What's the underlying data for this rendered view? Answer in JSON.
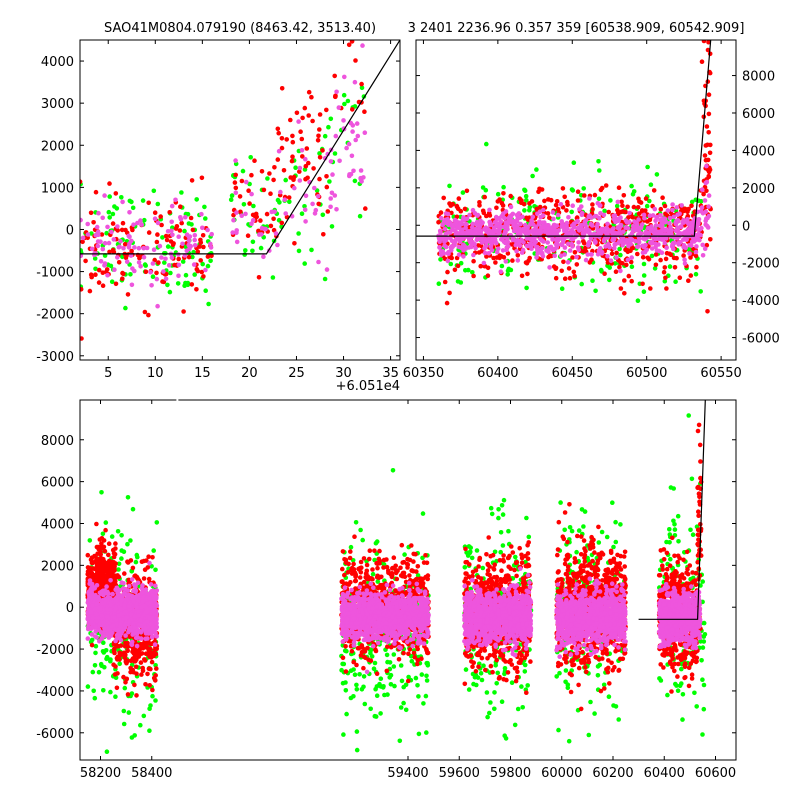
{
  "titles": {
    "left": "SAO41M0804.079190 (8463.42, 3513.40)",
    "right": "3 2401 2236.96 0.357 359 [60538.909, 60542.909]"
  },
  "colors": {
    "green": "#00ff00",
    "red": "#ff0000",
    "pink": "#ee55dd",
    "model": "#000000"
  },
  "chart_data": [
    {
      "panel": "top-left",
      "type": "scatter",
      "offset_label": "+6.051e4",
      "xlim": [
        2,
        36
      ],
      "ylim": [
        -3100,
        4500
      ],
      "xticks": [
        5,
        10,
        15,
        20,
        25,
        30,
        35
      ],
      "yticks": [
        -3000,
        -2000,
        -1000,
        0,
        1000,
        2000,
        3000,
        4000
      ],
      "series": [
        {
          "color": "green",
          "clusters": [
            {
              "xr": [
                2,
                16
              ],
              "cy": -300,
              "sy": 650,
              "n": 110
            },
            {
              "xr": [
                18,
                23
              ],
              "cy": 300,
              "sy": 650,
              "n": 30
            },
            {
              "xr": [
                23,
                29
              ],
              "cy": 900,
              "sy": 900,
              "n": 30
            },
            {
              "xr": [
                29,
                32.5
              ],
              "cy": 2500,
              "sy": 1200,
              "n": 15
            }
          ]
        },
        {
          "color": "red",
          "clusters": [
            {
              "xr": [
                2,
                16
              ],
              "cy": -500,
              "sy": 600,
              "n": 130
            },
            {
              "xr": [
                18,
                23
              ],
              "cy": 600,
              "sy": 600,
              "n": 35
            },
            {
              "xr": [
                23,
                28.5
              ],
              "cy": 1600,
              "sy": 800,
              "n": 55
            },
            {
              "xr": [
                29,
                32.5
              ],
              "cy": 2800,
              "sy": 900,
              "n": 15
            }
          ]
        },
        {
          "color": "pink",
          "clusters": [
            {
              "xr": [
                2,
                16
              ],
              "cy": -400,
              "sy": 500,
              "n": 110
            },
            {
              "xr": [
                18,
                23
              ],
              "cy": 100,
              "sy": 500,
              "n": 25
            },
            {
              "xr": [
                23,
                29
              ],
              "cy": 900,
              "sy": 700,
              "n": 30
            },
            {
              "xr": [
                29,
                32.5
              ],
              "cy": 2200,
              "sy": 900,
              "n": 30
            }
          ]
        }
      ],
      "model": {
        "x": [
          2,
          21.8,
          36
        ],
        "y": [
          -580,
          -580,
          4500
        ]
      }
    },
    {
      "panel": "top-right",
      "type": "scatter",
      "xlim": [
        60345,
        60560
      ],
      "ylim": [
        -7200,
        9900
      ],
      "xticks": [
        60350,
        60400,
        60450,
        60500,
        60550
      ],
      "yticks": [
        -6000,
        -4000,
        -2000,
        0,
        2000,
        4000,
        6000,
        8000
      ],
      "series": [
        {
          "color": "green",
          "clusters": [
            {
              "xr": [
                60360,
                60537
              ],
              "cy": -400,
              "sy": 1500,
              "n": 260
            }
          ]
        },
        {
          "color": "red",
          "clusters": [
            {
              "xr": [
                60360,
                60537
              ],
              "cy": -500,
              "sy": 1100,
              "n": 620
            },
            {
              "xr": [
                60537,
                60543
              ],
              "cy": 4200,
              "sy": 3000,
              "n": 50
            }
          ]
        },
        {
          "color": "pink",
          "clusters": [
            {
              "xr": [
                60360,
                60537
              ],
              "cy": -450,
              "sy": 600,
              "n": 900
            },
            {
              "xr": [
                60537,
                60543
              ],
              "cy": 1200,
              "sy": 1500,
              "n": 20
            }
          ]
        }
      ],
      "model": {
        "x": [
          60345,
          60532,
          60543
        ],
        "y": [
          -580,
          -580,
          9900
        ]
      }
    },
    {
      "panel": "bottom",
      "type": "scatter",
      "xlim": [
        58120,
        60680
      ],
      "ylim": [
        -7300,
        9900
      ],
      "xticks": [
        58200,
        58400,
        59400,
        59600,
        59800,
        60000,
        60200,
        60400,
        60600
      ],
      "yticks": [
        -6000,
        -4000,
        -2000,
        0,
        2000,
        4000,
        6000,
        8000
      ],
      "series": [
        {
          "color": "green",
          "clusters": [
            {
              "xr": [
                58150,
                58420
              ],
              "cy": -800,
              "sy": 2300,
              "n": 220
            },
            {
              "xr": [
                59140,
                59480
              ],
              "cy": -1300,
              "sy": 2200,
              "n": 300
            },
            {
              "xr": [
                59620,
                59880
              ],
              "cy": -600,
              "sy": 2300,
              "n": 200
            },
            {
              "xr": [
                59980,
                60250
              ],
              "cy": -400,
              "sy": 2400,
              "n": 220
            },
            {
              "xr": [
                60380,
                60560
              ],
              "cy": -300,
              "sy": 2500,
              "n": 160
            }
          ]
        },
        {
          "color": "red",
          "clusters": [
            {
              "xr": [
                58150,
                58260
              ],
              "cy": 1000,
              "sy": 900,
              "n": 500
            },
            {
              "xr": [
                58250,
                58420
              ],
              "cy": -900,
              "sy": 1200,
              "n": 500
            },
            {
              "xr": [
                59140,
                59480
              ],
              "cy": 0,
              "sy": 1200,
              "n": 700
            },
            {
              "xr": [
                59620,
                59880
              ],
              "cy": -300,
              "sy": 1300,
              "n": 700
            },
            {
              "xr": [
                59980,
                60250
              ],
              "cy": -100,
              "sy": 1400,
              "n": 800
            },
            {
              "xr": [
                60380,
                60530
              ],
              "cy": -500,
              "sy": 1200,
              "n": 500
            },
            {
              "xr": [
                60530,
                60545
              ],
              "cy": 4000,
              "sy": 3000,
              "n": 40
            }
          ]
        },
        {
          "color": "pink",
          "clusters": [
            {
              "xr": [
                58150,
                58420
              ],
              "cy": -250,
              "sy": 550,
              "n": 1100
            },
            {
              "xr": [
                59140,
                59480
              ],
              "cy": -450,
              "sy": 550,
              "n": 1100
            },
            {
              "xr": [
                59620,
                59880
              ],
              "cy": -450,
              "sy": 600,
              "n": 1000
            },
            {
              "xr": [
                59980,
                60250
              ],
              "cy": -550,
              "sy": 600,
              "n": 1000
            },
            {
              "xr": [
                60380,
                60540
              ],
              "cy": -500,
              "sy": 600,
              "n": 700
            }
          ]
        }
      ],
      "model": {
        "x": [
          60300,
          60530,
          60560
        ],
        "y": [
          -580,
          -580,
          9900
        ]
      }
    }
  ]
}
